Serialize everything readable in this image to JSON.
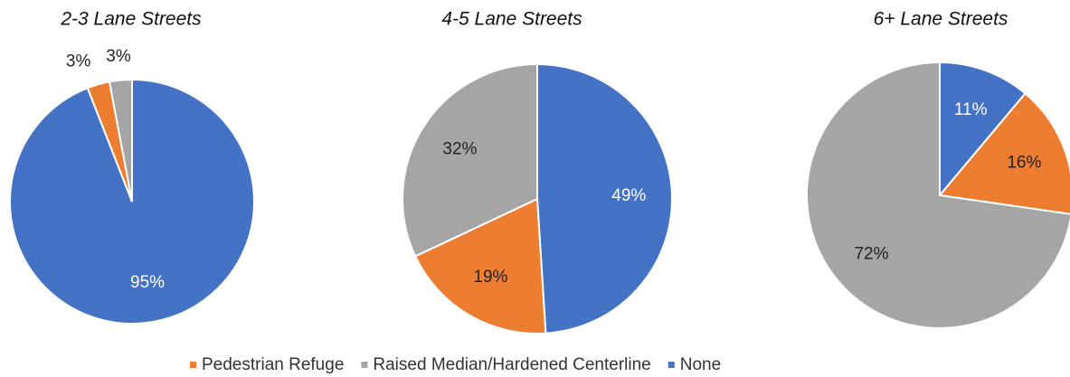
{
  "chart_data": [
    {
      "type": "pie",
      "title": "2-3 Lane Streets",
      "categories": [
        "None",
        "Pedestrian Refuge",
        "Raised Median/Hardened Centerline"
      ],
      "colors": [
        "#4472c4",
        "#ed7d31",
        "#a5a5a5"
      ],
      "values": [
        95,
        3,
        3
      ],
      "value_labels": [
        "95%",
        "3%",
        "3%"
      ]
    },
    {
      "type": "pie",
      "title": "4-5 Lane Streets",
      "categories": [
        "None",
        "Pedestrian Refuge",
        "Raised Median/Hardened Centerline"
      ],
      "colors": [
        "#4472c4",
        "#ed7d31",
        "#a5a5a5"
      ],
      "values": [
        49,
        19,
        32
      ],
      "value_labels": [
        "49%",
        "19%",
        "32%"
      ]
    },
    {
      "type": "pie",
      "title": "6+ Lane Streets",
      "categories": [
        "None",
        "Pedestrian Refuge",
        "Raised Median/Hardened Centerline"
      ],
      "colors": [
        "#4472c4",
        "#ed7d31",
        "#a5a5a5"
      ],
      "values": [
        11,
        16,
        72
      ],
      "value_labels": [
        "11%",
        "16%",
        "72%"
      ]
    }
  ]
}
